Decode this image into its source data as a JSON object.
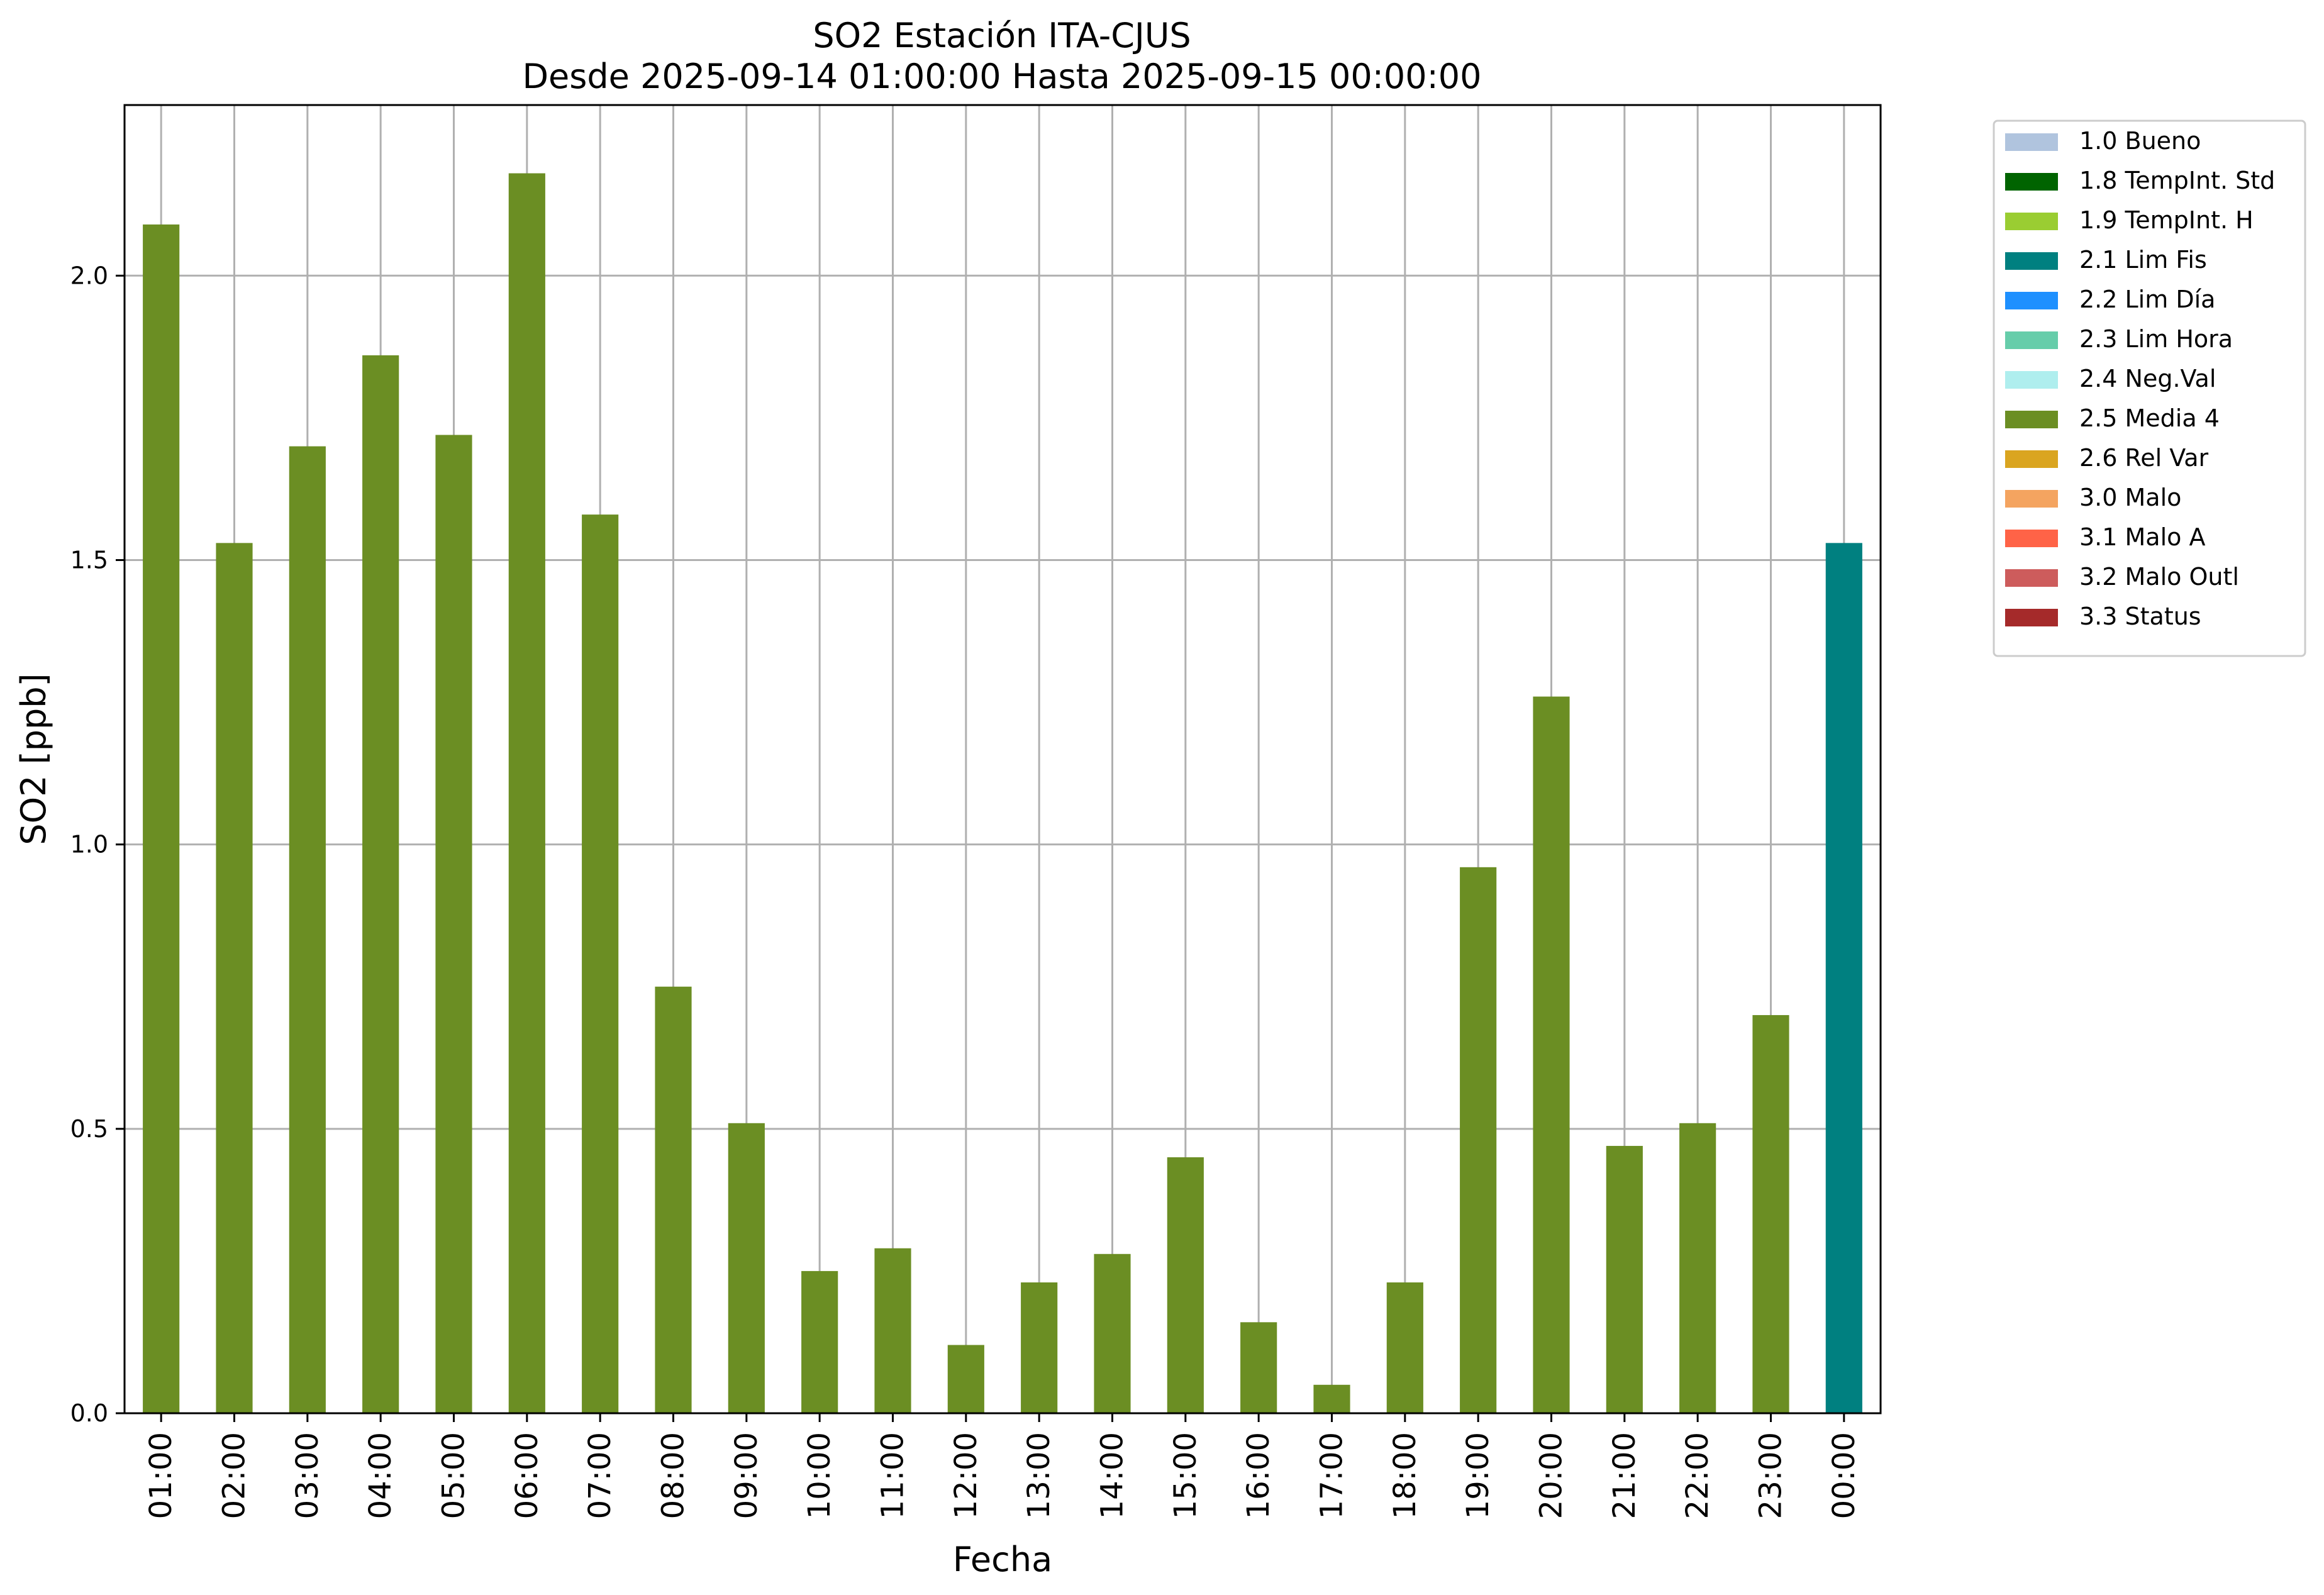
{
  "chart_data": {
    "type": "bar",
    "title": "SO2 Estación ITA-CJUS",
    "subtitle": "Desde 2025-09-14 01:00:00 Hasta 2025-09-15 00:00:00",
    "xlabel": "Fecha",
    "ylabel": "SO2 [ppb]",
    "ylim": [
      0,
      2.3
    ],
    "yticks": [
      "0.0",
      "0.5",
      "1.0",
      "1.5",
      "2.0"
    ],
    "grid": true,
    "legend_position": "outside-top-right",
    "categories": [
      "01:00",
      "02:00",
      "03:00",
      "04:00",
      "05:00",
      "06:00",
      "07:00",
      "08:00",
      "09:00",
      "10:00",
      "11:00",
      "12:00",
      "13:00",
      "14:00",
      "15:00",
      "16:00",
      "17:00",
      "18:00",
      "19:00",
      "20:00",
      "21:00",
      "22:00",
      "23:00",
      "00:00"
    ],
    "values": [
      2.09,
      1.53,
      1.7,
      1.86,
      1.72,
      2.18,
      1.58,
      0.75,
      0.51,
      0.25,
      0.29,
      0.12,
      0.23,
      0.28,
      0.45,
      0.16,
      0.05,
      0.23,
      0.96,
      1.26,
      0.47,
      0.51,
      0.7,
      1.53
    ],
    "bar_flags": [
      "2.5 Media 4",
      "2.5 Media 4",
      "2.5 Media 4",
      "2.5 Media 4",
      "2.5 Media 4",
      "2.5 Media 4",
      "2.5 Media 4",
      "2.5 Media 4",
      "2.5 Media 4",
      "2.5 Media 4",
      "2.5 Media 4",
      "2.5 Media 4",
      "2.5 Media 4",
      "2.5 Media 4",
      "2.5 Media 4",
      "2.5 Media 4",
      "2.5 Media 4",
      "2.5 Media 4",
      "2.5 Media 4",
      "2.5 Media 4",
      "2.5 Media 4",
      "2.5 Media 4",
      "2.5 Media 4",
      "2.1 Lim Fis"
    ],
    "legend": [
      {
        "label": "1.0 Bueno",
        "color": "#b0c4de"
      },
      {
        "label": "1.8 TempInt. Std",
        "color": "#006400"
      },
      {
        "label": "1.9 TempInt. H",
        "color": "#9acd32"
      },
      {
        "label": "2.1 Lim Fis",
        "color": "#008080"
      },
      {
        "label": "2.2 Lim Día",
        "color": "#1e90ff"
      },
      {
        "label": "2.3 Lim Hora",
        "color": "#66cdaa"
      },
      {
        "label": "2.4 Neg.Val",
        "color": "#afeeee"
      },
      {
        "label": "2.5 Media 4",
        "color": "#6b8e23"
      },
      {
        "label": "2.6 Rel Var",
        "color": "#daa520"
      },
      {
        "label": "3.0 Malo",
        "color": "#f4a460"
      },
      {
        "label": "3.1 Malo A",
        "color": "#ff6347"
      },
      {
        "label": "3.2 Malo Outl",
        "color": "#cd5c5c"
      },
      {
        "label": "3.3 Status",
        "color": "#a52a2a"
      }
    ]
  }
}
